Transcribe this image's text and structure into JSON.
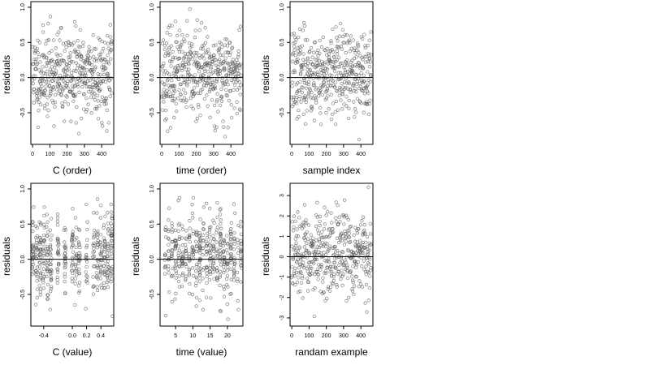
{
  "figure": {
    "layout": "2x3 grid of residual scatter plots",
    "background": "#ffffff",
    "point_color": "#555555"
  },
  "chart_data": [
    {
      "id": "c-order",
      "type": "scatter",
      "xlabel": "C (order)",
      "ylabel": "residuals",
      "xlim": [
        -10,
        470
      ],
      "ylim": [
        -0.95,
        1.08
      ],
      "xticks": [
        0,
        100,
        200,
        300,
        400
      ],
      "xtick_labels": [
        "0",
        "100",
        "200",
        "300",
        "400"
      ],
      "yticks": [
        -0.5,
        0.0,
        0.5,
        1.0
      ],
      "ytick_labels": [
        "-0.5",
        "0.0",
        "0.5",
        "1.0"
      ],
      "hline": 0,
      "n_points": 460,
      "x_kind": "index",
      "y_center": 0.05,
      "y_spread": 0.3,
      "seed": 11
    },
    {
      "id": "time-order",
      "type": "scatter",
      "xlabel": "time (order)",
      "ylabel": "residuals",
      "xlim": [
        -10,
        470
      ],
      "ylim": [
        -0.95,
        1.08
      ],
      "xticks": [
        0,
        100,
        200,
        300,
        400
      ],
      "xtick_labels": [
        "0",
        "100",
        "200",
        "300",
        "400"
      ],
      "yticks": [
        -0.5,
        0.0,
        0.5,
        1.0
      ],
      "ytick_labels": [
        "-0.5",
        "0.0",
        "0.5",
        "1.0"
      ],
      "hline": 0,
      "n_points": 460,
      "x_kind": "index",
      "y_center": 0.05,
      "y_spread": 0.3,
      "seed": 23
    },
    {
      "id": "sample-index",
      "type": "scatter",
      "xlabel": "sample index",
      "ylabel": "residuals",
      "xlim": [
        -10,
        470
      ],
      "ylim": [
        -0.95,
        1.08
      ],
      "xticks": [
        0,
        100,
        200,
        300,
        400
      ],
      "xtick_labels": [
        "0",
        "100",
        "200",
        "300",
        "400"
      ],
      "yticks": [
        -0.5,
        0.0,
        0.5,
        1.0
      ],
      "ytick_labels": [
        "-0.5",
        "0.0",
        "0.5",
        "1.0"
      ],
      "hline": 0,
      "n_points": 460,
      "x_kind": "index",
      "y_center": 0.05,
      "y_spread": 0.3,
      "seed": 37
    },
    {
      "id": "c-value",
      "type": "scatter",
      "xlabel": "C (value)",
      "ylabel": "residuals",
      "xlim": [
        -0.58,
        0.58
      ],
      "ylim": [
        -0.95,
        1.08
      ],
      "xticks": [
        -0.4,
        0.0,
        0.2,
        0.4
      ],
      "xtick_labels": [
        "-0.4",
        "0.0",
        "0.2",
        "0.4"
      ],
      "yticks": [
        -0.5,
        0.0,
        0.5,
        1.0
      ],
      "ytick_labels": [
        "-0.5",
        "0.0",
        "0.5",
        "1.0"
      ],
      "hline": 0,
      "n_points": 460,
      "x_kind": "discrete",
      "x_levels": [
        -0.55,
        -0.5,
        -0.45,
        -0.4,
        -0.35,
        -0.3,
        -0.2,
        -0.1,
        0.0,
        0.05,
        0.1,
        0.2,
        0.3,
        0.35,
        0.4,
        0.45,
        0.5,
        0.55
      ],
      "x_jitter": 0.012,
      "y_center": 0.05,
      "y_spread": 0.3,
      "seed": 41
    },
    {
      "id": "time-value",
      "type": "scatter",
      "xlabel": "time (value)",
      "ylabel": "residuals",
      "xlim": [
        0.5,
        24.5
      ],
      "ylim": [
        -0.95,
        1.08
      ],
      "xticks": [
        5,
        10,
        15,
        20
      ],
      "xtick_labels": [
        "5",
        "10",
        "15",
        "20"
      ],
      "yticks": [
        -0.5,
        0.0,
        0.5,
        1.0
      ],
      "ytick_labels": [
        "-0.5",
        "0.0",
        "0.5",
        "1.0"
      ],
      "hline": 0,
      "n_points": 460,
      "x_kind": "discrete",
      "x_levels": [
        2,
        3,
        4,
        5,
        6,
        7,
        8,
        9,
        10,
        11,
        12,
        13,
        14,
        15,
        16,
        17,
        18,
        19,
        20,
        21,
        22,
        23,
        24
      ],
      "x_jitter": 0.2,
      "y_center": 0.05,
      "y_spread": 0.3,
      "seed": 53
    },
    {
      "id": "random-example",
      "type": "scatter",
      "xlabel": "randam example",
      "ylabel": "residuals",
      "xlim": [
        -10,
        470
      ],
      "ylim": [
        -3.4,
        3.6
      ],
      "xticks": [
        0,
        100,
        200,
        300,
        400
      ],
      "xtick_labels": [
        "0",
        "100",
        "200",
        "300",
        "400"
      ],
      "yticks": [
        -3,
        -2,
        -1,
        0,
        1,
        2,
        3
      ],
      "ytick_labels": [
        "-3",
        "-2",
        "-1",
        "0",
        "1",
        "2",
        "3"
      ],
      "hline": 0,
      "n_points": 460,
      "x_kind": "index",
      "y_center": 0.0,
      "y_spread": 1.0,
      "seed": 67
    }
  ]
}
